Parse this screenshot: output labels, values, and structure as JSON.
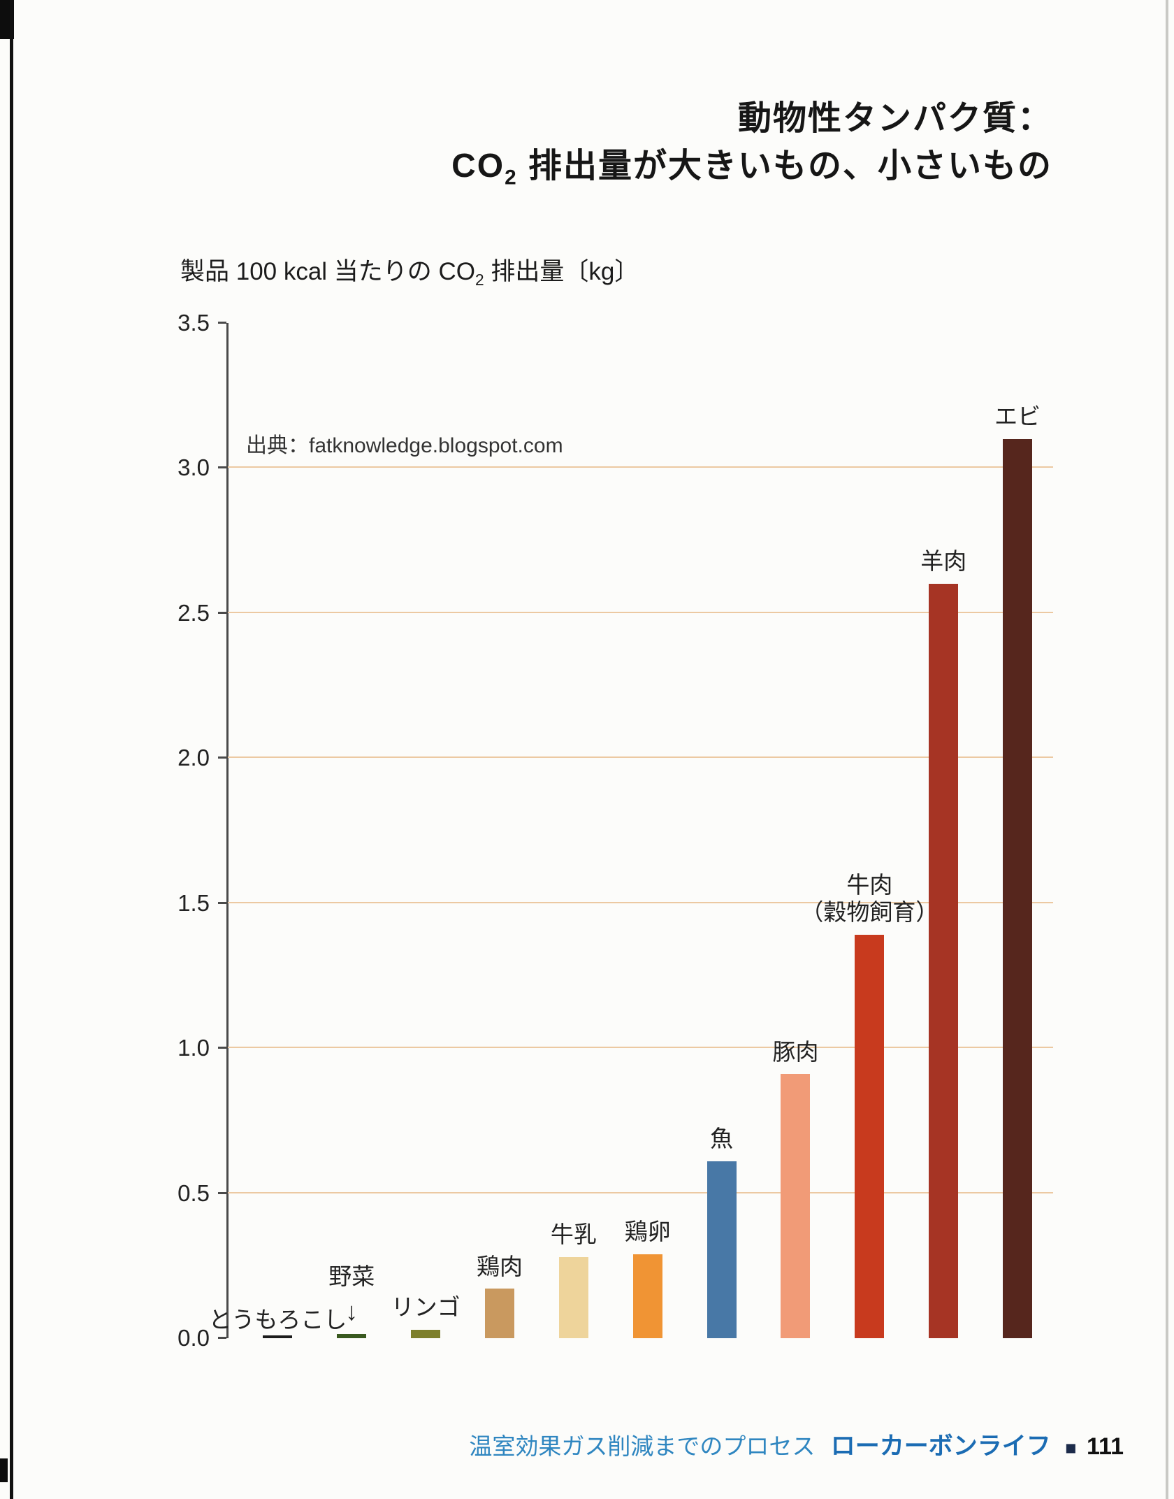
{
  "title": {
    "line1": "動物性タンパク質：",
    "line2_pre": "CO",
    "line2_sub": "2",
    "line2_rest": " 排出量が大きいもの、小さいもの"
  },
  "axis_title": {
    "pre": "製品 100 kcal 当たりの CO",
    "sub": "2",
    "rest": " 排出量〔kg〕"
  },
  "footer": {
    "section": "温室効果ガス削減までのプロセス",
    "book": "ローカーボンライフ",
    "square": "■",
    "page_number": "111"
  },
  "chart_data": {
    "type": "bar",
    "title": "動物性タンパク質：CO2 排出量が大きいもの、小さいもの",
    "ylabel": "製品 100 kcal 当たりの CO2 排出量〔kg〕",
    "source": "出典：fatknowledge.blogspot.com",
    "ylim": [
      0,
      3.5
    ],
    "ytick_step": 0.5,
    "yticks": [
      "0.0",
      "0.5",
      "1.0",
      "1.5",
      "2.0",
      "2.5",
      "3.0",
      "3.5"
    ],
    "grid": true,
    "legend": false,
    "categories": [
      "とうもろこし",
      "野菜",
      "リンゴ",
      "鶏肉",
      "牛乳",
      "鶏卵",
      "魚",
      "豚肉",
      "牛肉（穀物飼育）",
      "羊肉",
      "エビ"
    ],
    "values": [
      0.01,
      0.015,
      0.03,
      0.17,
      0.28,
      0.29,
      0.61,
      0.91,
      1.39,
      2.6,
      3.1
    ],
    "colors": [
      "#1c1c1c",
      "#39591f",
      "#7d7f2c",
      "#c9995f",
      "#eed49b",
      "#f09434",
      "#4878a6",
      "#f19b77",
      "#c83a1e",
      "#a63424",
      "#56261d"
    ],
    "label_styles": [
      "baseline",
      "arrow",
      "above",
      "above",
      "above",
      "above",
      "above",
      "above",
      "above",
      "above",
      "above"
    ],
    "arrow_glyph": "↓"
  }
}
